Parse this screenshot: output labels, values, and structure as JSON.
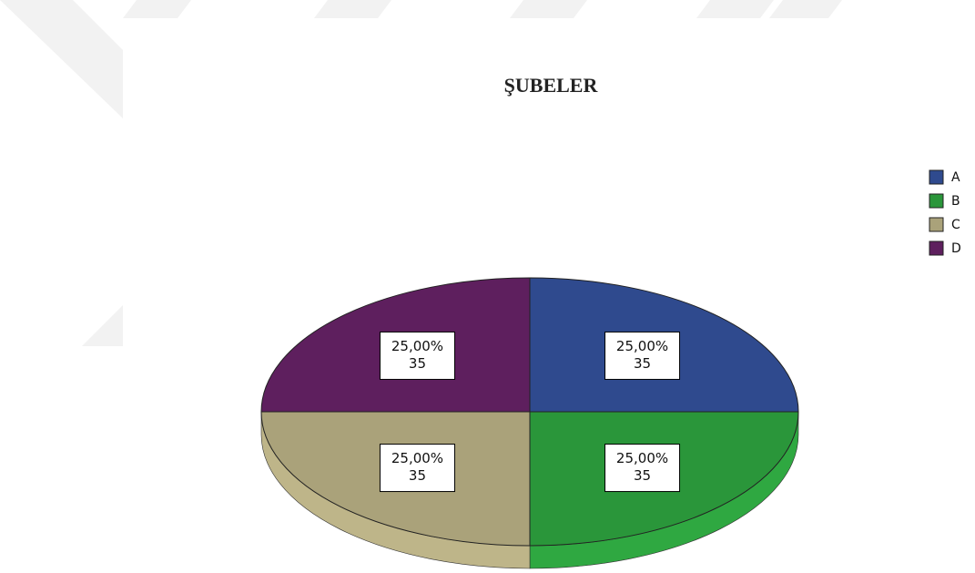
{
  "chart_data": {
    "type": "pie",
    "title": "ŞUBELER",
    "categories": [
      "A",
      "B",
      "C",
      "D"
    ],
    "values": [
      25,
      25,
      25,
      25
    ],
    "value_labels": [
      "25,00%",
      "25,00%",
      "25,00%",
      "25,00%"
    ],
    "counts": [
      35,
      35,
      35,
      35
    ],
    "colors": [
      "#2f4a8e",
      "#2a963a",
      "#aaa27a",
      "#5e1f5e"
    ],
    "legend": "upper right"
  }
}
